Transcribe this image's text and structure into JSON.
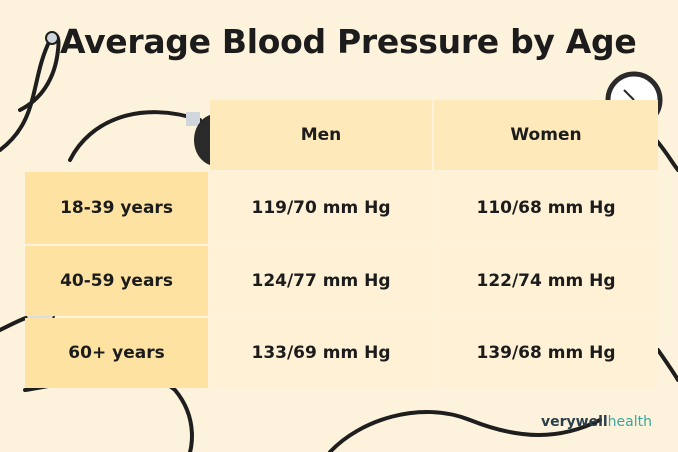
{
  "title": "Average Blood Pressure by Age",
  "table": {
    "header": [
      "Men",
      "Women"
    ],
    "rows": [
      [
        "18-39 years",
        "119/70 mm Hg",
        "110/68 mm Hg"
      ],
      [
        "40-59 years",
        "124/77 mm Hg",
        "122/74 mm Hg"
      ],
      [
        "60+ years",
        "133/69 mm Hg",
        "139/68 mm Hg"
      ]
    ]
  },
  "brand": {
    "primary": "verywell",
    "secondary": "health"
  }
}
